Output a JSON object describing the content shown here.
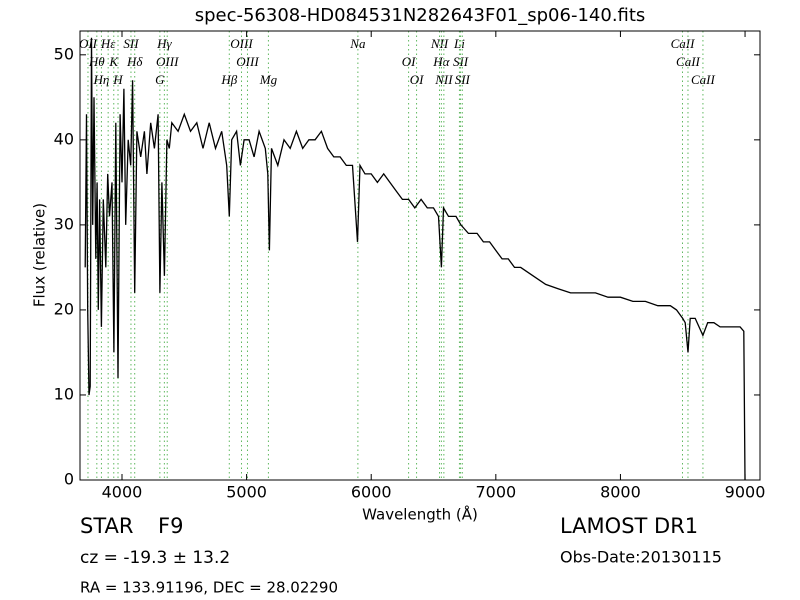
{
  "chart_data": {
    "type": "line",
    "title": "spec-56308-HD084531N282643F01_sp06-140.fits",
    "xlabel": "Wavelength (Å)",
    "ylabel": "Flux (relative)",
    "xlim": [
      3663,
      9120
    ],
    "ylim": [
      0,
      52.8
    ],
    "xticks": [
      4000,
      5000,
      6000,
      7000,
      8000,
      9000
    ],
    "yticks": [
      0,
      10,
      20,
      30,
      40,
      50
    ],
    "color": "#000000",
    "annotation_color": "#5fb85f",
    "x": [
      3705,
      3715,
      3725,
      3735,
      3745,
      3755,
      3765,
      3775,
      3790,
      3800,
      3810,
      3820,
      3835,
      3850,
      3870,
      3885,
      3900,
      3920,
      3935,
      3950,
      3968,
      3985,
      4000,
      4015,
      4030,
      4050,
      4070,
      4085,
      4102,
      4120,
      4150,
      4180,
      4200,
      4230,
      4260,
      4290,
      4304,
      4320,
      4340,
      4360,
      4380,
      4400,
      4450,
      4500,
      4550,
      4600,
      4650,
      4700,
      4750,
      4800,
      4840,
      4861,
      4880,
      4920,
      4950,
      4980,
      5020,
      5060,
      5100,
      5150,
      5170,
      5183,
      5200,
      5250,
      5300,
      5350,
      5400,
      5450,
      5500,
      5550,
      5600,
      5650,
      5700,
      5750,
      5800,
      5850,
      5890,
      5910,
      5950,
      6000,
      6050,
      6100,
      6150,
      6200,
      6250,
      6300,
      6350,
      6400,
      6450,
      6500,
      6540,
      6563,
      6580,
      6620,
      6680,
      6720,
      6780,
      6850,
      6900,
      6950,
      7000,
      7050,
      7100,
      7150,
      7200,
      7300,
      7400,
      7500,
      7600,
      7700,
      7800,
      7900,
      8000,
      8100,
      8200,
      8300,
      8400,
      8450,
      8500,
      8520,
      8542,
      8560,
      8600,
      8662,
      8700,
      8750,
      8800,
      8850,
      8900,
      8960,
      8990,
      9000
    ],
    "values": [
      25,
      43,
      20,
      10,
      11,
      52,
      30,
      45,
      26,
      35,
      20,
      33,
      18,
      33,
      25,
      36,
      31,
      35,
      15,
      42,
      12,
      43,
      35,
      46,
      30,
      40,
      37,
      47,
      22,
      41,
      38,
      41,
      36,
      42,
      39,
      43,
      22,
      35,
      24,
      40,
      39,
      42,
      41,
      43,
      41,
      42,
      39,
      42,
      39,
      41,
      37,
      31,
      40,
      41,
      37,
      40,
      40,
      38,
      41,
      39,
      36,
      27,
      39,
      37,
      40,
      39,
      41,
      39,
      40,
      40,
      41,
      39,
      38,
      38,
      37,
      37,
      28,
      37,
      36,
      36,
      35,
      36,
      35,
      34,
      33,
      33,
      32,
      33,
      32,
      32,
      31,
      25,
      32,
      31,
      31,
      30,
      29,
      29,
      28,
      28,
      27,
      26,
      26,
      25,
      25,
      24,
      23,
      22.5,
      22,
      22,
      22,
      21.5,
      21.5,
      21,
      21,
      20.5,
      20.5,
      20,
      19,
      18.5,
      15,
      19,
      19,
      17,
      18.5,
      18.5,
      18,
      18,
      18,
      18,
      17.5,
      0
    ],
    "annotations": [
      {
        "label": "OII",
        "x": 3727
      },
      {
        "label": "Hθ",
        "x": 3798
      },
      {
        "label": "Hη",
        "x": 3835
      },
      {
        "label": "Hε",
        "x": 3889
      },
      {
        "label": "K",
        "x": 3934
      },
      {
        "label": "H",
        "x": 3968
      },
      {
        "label": "SII",
        "x": 4072
      },
      {
        "label": "Hδ",
        "x": 4102
      },
      {
        "label": "G",
        "x": 4304
      },
      {
        "label": "Hγ",
        "x": 4340
      },
      {
        "label": "OIII",
        "x": 4363
      },
      {
        "label": "Hβ",
        "x": 4861
      },
      {
        "label": "OIII",
        "x": 4959
      },
      {
        "label": "OIII",
        "x": 5007
      },
      {
        "label": "Mg",
        "x": 5175
      },
      {
        "label": "Na",
        "x": 5893
      },
      {
        "label": "OI",
        "x": 6300
      },
      {
        "label": "OI",
        "x": 6364
      },
      {
        "label": "NII",
        "x": 6548
      },
      {
        "label": "Hα",
        "x": 6563
      },
      {
        "label": "NII",
        "x": 6583
      },
      {
        "label": "Li",
        "x": 6708
      },
      {
        "label": "SII",
        "x": 6717
      },
      {
        "label": "SII",
        "x": 6731
      },
      {
        "label": "CaII",
        "x": 8498
      },
      {
        "label": "CaII",
        "x": 8542
      },
      {
        "label": "CaII",
        "x": 8662
      }
    ]
  },
  "info": {
    "class": "STAR",
    "subclass": "F9",
    "cz": "cz = -19.3 ± 13.2",
    "coords": "RA = 133.91196, DEC = 28.02290",
    "survey": "LAMOST DR1",
    "date": "Obs-Date:20130115"
  }
}
